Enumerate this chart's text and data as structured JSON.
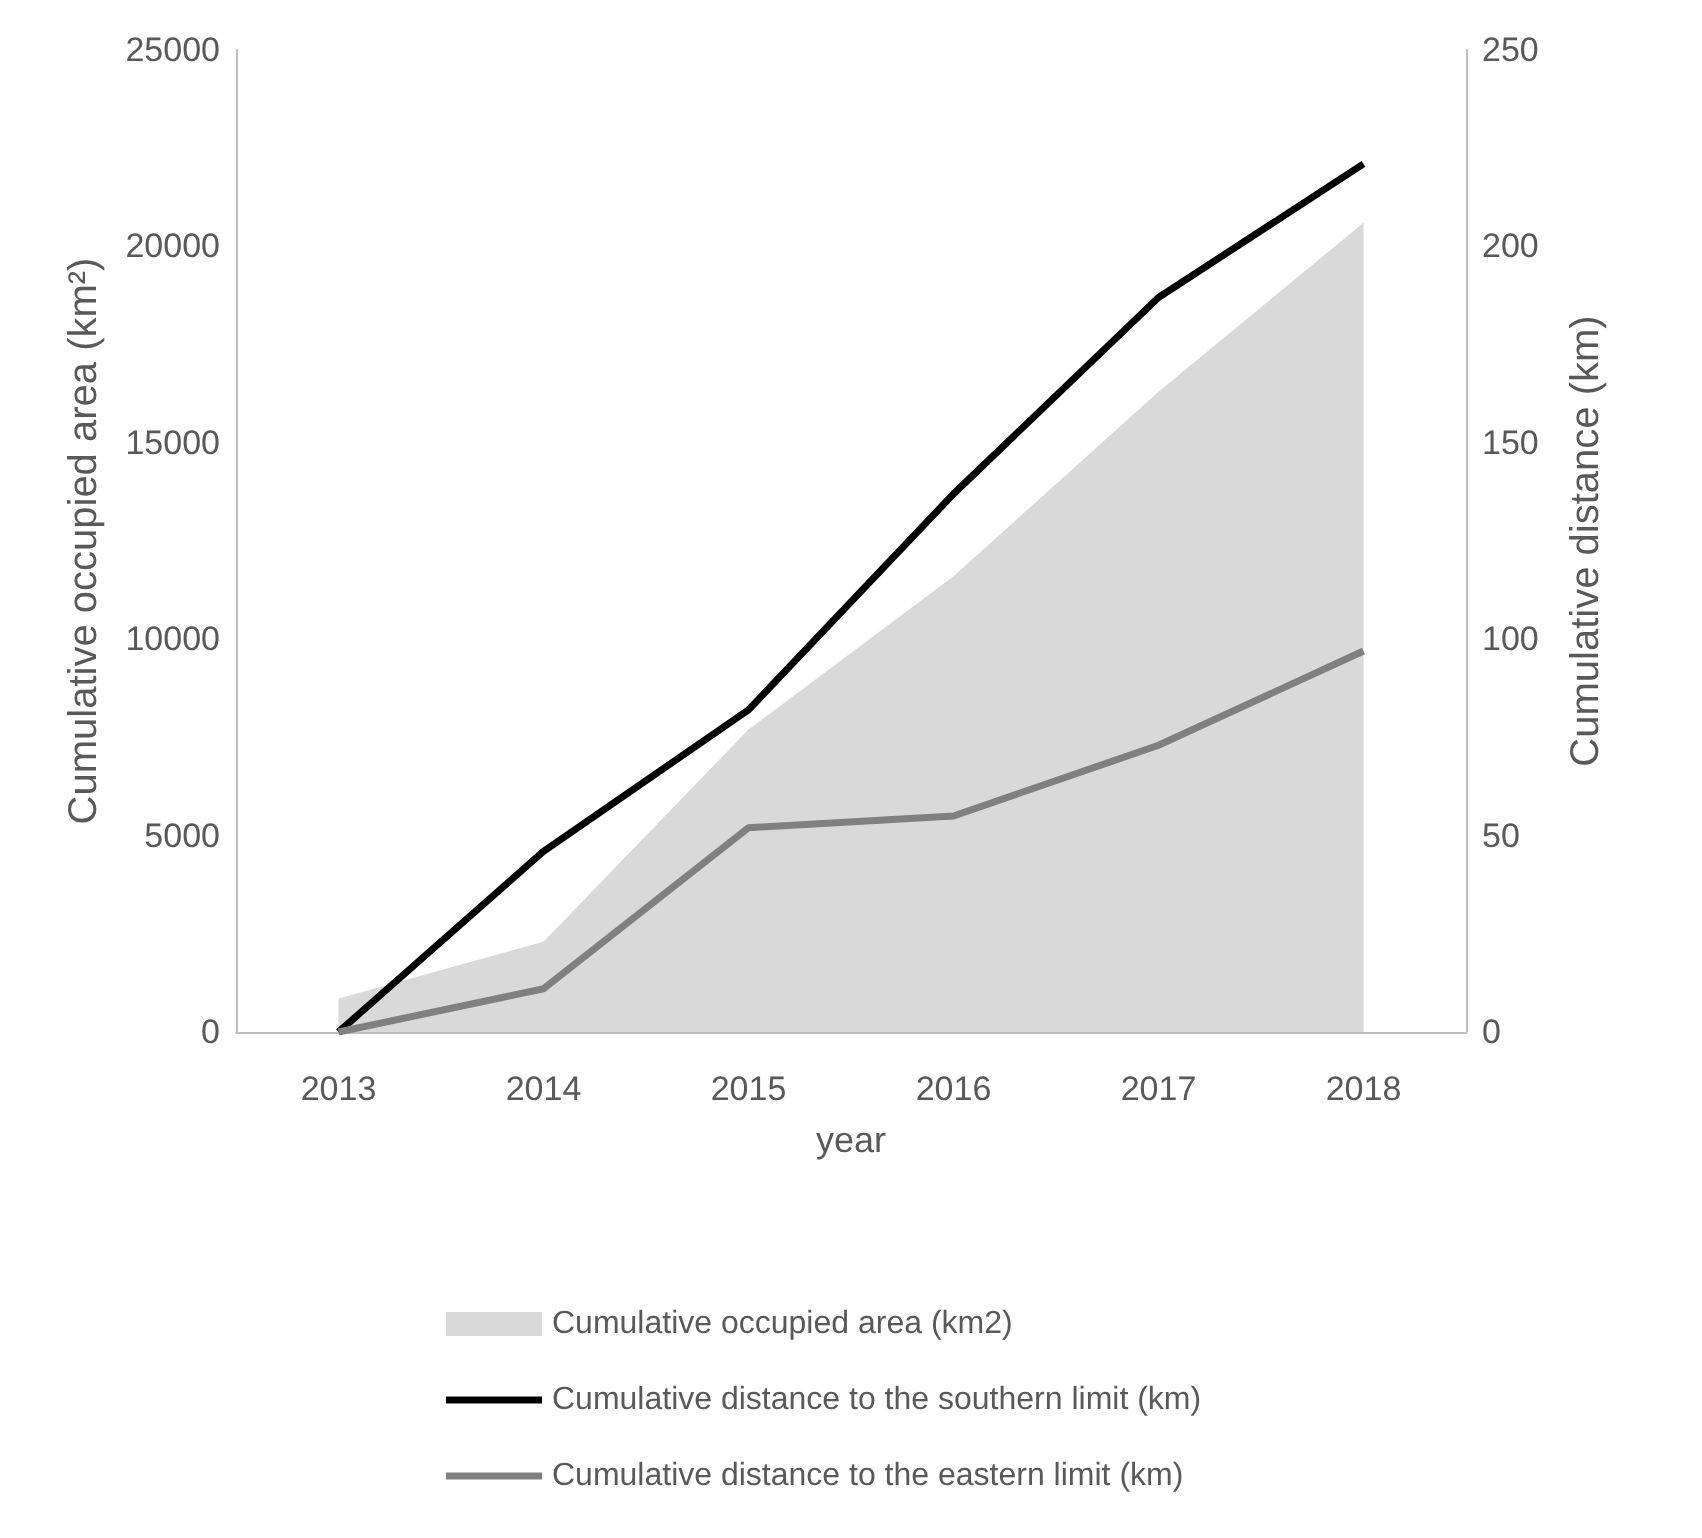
{
  "chart_data": {
    "type": "line",
    "xlabel": "year",
    "ylabel": "Cumulative occupied area (km²)",
    "y2label": "Cumulative distance (km)",
    "categories": [
      "2013",
      "2014",
      "2015",
      "2016",
      "2017",
      "2018"
    ],
    "series": [
      {
        "name": "Cumulative occupied area (km2)",
        "type": "area",
        "color": "#d9d9d9",
        "values": [
          850,
          2300,
          7700,
          11600,
          16300,
          20600
        ]
      },
      {
        "name": "Cumulative distance to the southern limit (km)",
        "axis": "y2",
        "color": "#000000",
        "values": [
          0,
          46,
          82,
          137,
          187,
          221
        ]
      },
      {
        "name": "Cumulative distance to the eastern limit (km)",
        "axis": "y2",
        "color": "#808080",
        "values": [
          0,
          11,
          52,
          55,
          73,
          97
        ]
      }
    ],
    "ylim": [
      0,
      25000
    ],
    "yticks": [
      0,
      5000,
      10000,
      15000,
      20000,
      25000
    ],
    "y2lim": [
      0,
      250
    ],
    "y2ticks": [
      0,
      50,
      100,
      150,
      200,
      250
    ],
    "grid": false,
    "legend": "bottom",
    "marker": "none",
    "line_style": "solid"
  }
}
